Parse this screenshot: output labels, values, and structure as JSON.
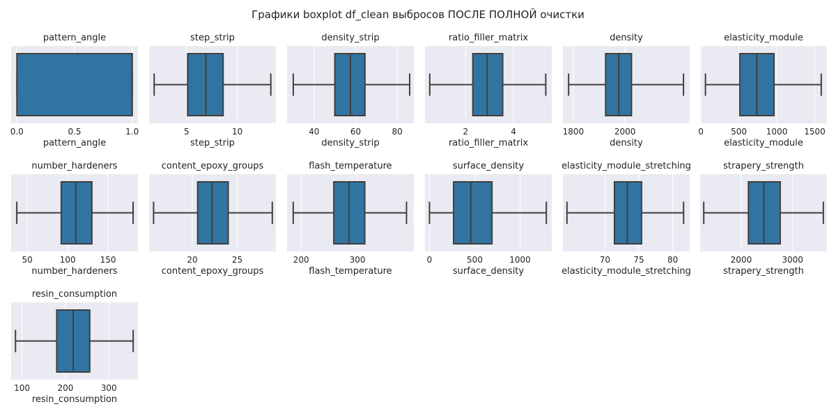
{
  "figure": {
    "title": "Графики boxplot df_clean выбросов ПОСЛЕ ПОЛНОЙ очистки",
    "background": "#ffffff",
    "axes_facecolor": "#eaeaf2",
    "grid_color": "#ffffff",
    "box_color": "#3274a1",
    "line_color": "#3f3f3f"
  },
  "chart_data": [
    {
      "type": "box",
      "title": "pattern_angle",
      "xlabel": "pattern_angle",
      "xlim": [
        -0.05,
        1.05
      ],
      "ticks": [
        0,
        0.5,
        1
      ],
      "tick_labels": [
        "0.0",
        "0.5",
        "1.0"
      ],
      "whisker_low": 0,
      "q1": 0,
      "median": 1,
      "q3": 1,
      "whisker_high": 1,
      "grid": true
    },
    {
      "type": "box",
      "title": "step_strip",
      "xlabel": "step_strip",
      "xlim": [
        1.3,
        13.8
      ],
      "ticks": [
        5,
        10
      ],
      "tick_labels": [
        "5",
        "10"
      ],
      "whisker_low": 1.8,
      "q1": 5.1,
      "median": 6.9,
      "q3": 8.6,
      "whisker_high": 13.3,
      "grid": true
    },
    {
      "type": "box",
      "title": "density_strip",
      "xlabel": "density_strip",
      "xlim": [
        27,
        88
      ],
      "ticks": [
        40,
        60,
        80
      ],
      "tick_labels": [
        "40",
        "60",
        "80"
      ],
      "whisker_low": 30,
      "q1": 50,
      "median": 57.5,
      "q3": 64.5,
      "whisker_high": 86,
      "grid": true
    },
    {
      "type": "box",
      "title": "ratio_filler_matrix",
      "xlabel": "ratio_filler_matrix",
      "xlim": [
        0.3,
        5.6
      ],
      "ticks": [
        2,
        4
      ],
      "tick_labels": [
        "2",
        "4"
      ],
      "whisker_low": 0.5,
      "q1": 2.3,
      "median": 2.9,
      "q3": 3.55,
      "whisker_high": 5.35,
      "grid": true
    },
    {
      "type": "box",
      "title": "density",
      "xlabel": "density",
      "xlim": [
        1760,
        2250
      ],
      "ticks": [
        1800,
        2000
      ],
      "tick_labels": [
        "1800",
        "2000"
      ],
      "whisker_low": 1782,
      "q1": 1925,
      "median": 1976,
      "q3": 2025,
      "whisker_high": 2226,
      "grid": true
    },
    {
      "type": "box",
      "title": "elasticity_module",
      "xlabel": "elasticity_module",
      "xlim": [
        -10,
        1660
      ],
      "ticks": [
        0,
        500,
        1000,
        1500
      ],
      "tick_labels": [
        "0",
        "500",
        "1000",
        "1500"
      ],
      "whisker_low": 60,
      "q1": 512,
      "median": 735,
      "q3": 963,
      "whisker_high": 1585,
      "grid": true
    },
    {
      "type": "box",
      "title": "number_hardeners",
      "xlabel": "number_hardeners",
      "xlim": [
        30,
        187
      ],
      "ticks": [
        50,
        100,
        150
      ],
      "tick_labels": [
        "50",
        "100",
        "150"
      ],
      "whisker_low": 37,
      "q1": 92,
      "median": 110,
      "q3": 130,
      "whisker_high": 181,
      "grid": true
    },
    {
      "type": "box",
      "title": "content_epoxy_groups",
      "xlabel": "content_epoxy_groups",
      "xlim": [
        15.2,
        29.3
      ],
      "ticks": [
        20,
        25
      ],
      "tick_labels": [
        "20",
        "25"
      ],
      "whisker_low": 15.7,
      "q1": 20.6,
      "median": 22.2,
      "q3": 24,
      "whisker_high": 28.9,
      "grid": true
    },
    {
      "type": "box",
      "title": "flash_temperature",
      "xlabel": "flash_temperature",
      "xlim": [
        175,
        400
      ],
      "ticks": [
        200,
        300
      ],
      "tick_labels": [
        "200",
        "300"
      ],
      "whisker_low": 186,
      "q1": 258,
      "median": 285,
      "q3": 313,
      "whisker_high": 387,
      "grid": true
    },
    {
      "type": "box",
      "title": "surface_density",
      "xlabel": "surface_density",
      "xlim": [
        -50,
        1350
      ],
      "ticks": [
        0,
        500,
        1000
      ],
      "tick_labels": [
        "0",
        "500",
        "1000"
      ],
      "whisker_low": 0,
      "q1": 266,
      "median": 456,
      "q3": 690,
      "whisker_high": 1290,
      "grid": true
    },
    {
      "type": "box",
      "title": "elasticity_module_stretching",
      "xlabel": "elasticity_module_stretching",
      "xlim": [
        63.8,
        82.5
      ],
      "ticks": [
        70,
        75,
        80
      ],
      "tick_labels": [
        "70",
        "75",
        "80"
      ],
      "whisker_low": 64.4,
      "q1": 71.4,
      "median": 73.3,
      "q3": 75.4,
      "whisker_high": 81.6,
      "grid": true
    },
    {
      "type": "box",
      "title": "strapery_strength",
      "xlabel": "strapery_strength",
      "xlim": [
        1200,
        3670
      ],
      "ticks": [
        2000,
        3000
      ],
      "tick_labels": [
        "2000",
        "3000"
      ],
      "whisker_low": 1270,
      "q1": 2140,
      "median": 2440,
      "q3": 2760,
      "whisker_high": 3600,
      "grid": true
    },
    {
      "type": "box",
      "title": "resin_consumption",
      "xlabel": "resin_consumption",
      "xlim": [
        75,
        367
      ],
      "ticks": [
        100,
        200,
        300
      ],
      "tick_labels": [
        "100",
        "200",
        "300"
      ],
      "whisker_low": 85,
      "q1": 180,
      "median": 218,
      "q3": 256,
      "whisker_high": 356,
      "grid": true
    }
  ]
}
